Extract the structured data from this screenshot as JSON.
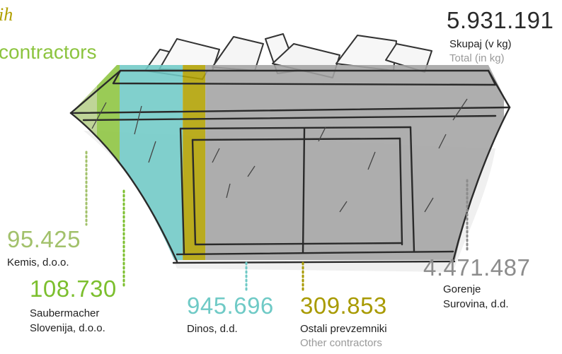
{
  "header": {
    "title_fragment": "ih",
    "subtitle_fragment": "contractors"
  },
  "total": {
    "value": "5.931.191",
    "label": "Skupaj (v kg)",
    "label_en": "Total (in kg)"
  },
  "chart_data": {
    "type": "bar",
    "unit": "kg",
    "total": 5931191,
    "categories": [
      "Kemis, d.o.o.",
      "Saubermacher Slovenija, d.o.o.",
      "Dinos, d.d.",
      "Ostali prevzemniki",
      "Gorenje Surovina, d.d."
    ],
    "values": [
      95425,
      108730,
      945696,
      309853,
      4471487
    ],
    "series": [
      {
        "name": "Kemis, d.o.o.",
        "value": 95425,
        "color": "#b6cf8a"
      },
      {
        "name": "Saubermacher Slovenija, d.o.o.",
        "value": 108730,
        "color": "#8cc43f"
      },
      {
        "name": "Dinos, d.d.",
        "value": 945696,
        "color": "#6fcac6"
      },
      {
        "name": "Ostali prevzemniki",
        "value": 309853,
        "color": "#b1a000"
      },
      {
        "name": "Gorenje Surovina, d.d.",
        "value": 4471487,
        "color": "#a3a3a3"
      }
    ]
  },
  "labels": [
    {
      "value_text": "95.425",
      "name_lines": [
        "Kemis, d.o.o."
      ],
      "name_en": "",
      "color": "#a2c16b"
    },
    {
      "value_text": "108.730",
      "name_lines": [
        "Saubermacher",
        "Slovenija, d.o.o."
      ],
      "name_en": "",
      "color": "#7cbf2e"
    },
    {
      "value_text": "945.696",
      "name_lines": [
        "Dinos, d.d."
      ],
      "name_en": "",
      "color": "#6fcac6"
    },
    {
      "value_text": "309.853",
      "name_lines": [
        "Ostali prevzemniki"
      ],
      "name_en": "Other contractors",
      "color": "#a89a00"
    },
    {
      "value_text": "4.471.487",
      "name_lines": [
        "Gorenje",
        "Surovina, d.d."
      ],
      "name_en": "",
      "color": "#8c8c8c"
    }
  ]
}
